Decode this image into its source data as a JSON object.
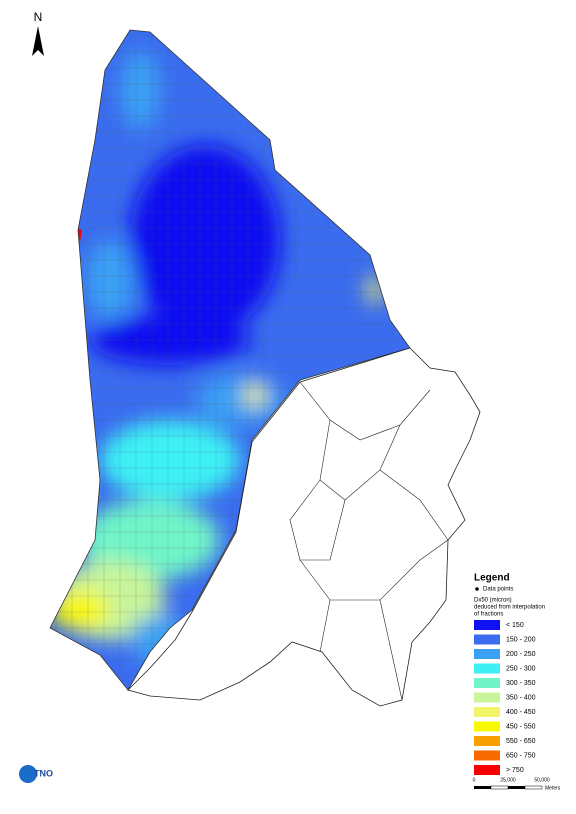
{
  "north_label": "N",
  "legend": {
    "title": "Legend",
    "point_label": "Data points",
    "description": [
      "Dx50 (micron)",
      "deduced from interpolation",
      "of fractions"
    ],
    "classes": [
      {
        "label": "< 150",
        "color": "#1010f0"
      },
      {
        "label": "150 - 200",
        "color": "#3a6cf0"
      },
      {
        "label": "200 - 250",
        "color": "#3aa0f4"
      },
      {
        "label": "250 - 300",
        "color": "#3ef0f4"
      },
      {
        "label": "300 - 350",
        "color": "#70f4c8"
      },
      {
        "label": "350 - 400",
        "color": "#c8f49a"
      },
      {
        "label": "400 - 450",
        "color": "#f4f46a"
      },
      {
        "label": "450 - 550",
        "color": "#f8f800"
      },
      {
        "label": "550 - 650",
        "color": "#f8a000"
      },
      {
        "label": "650 - 750",
        "color": "#f86a00"
      },
      {
        "label": "> 750",
        "color": "#f80000"
      }
    ]
  },
  "scale_bar": {
    "labels": [
      "0",
      "25,000",
      "50,000"
    ],
    "unit": "Meters"
  },
  "logo": "TNO"
}
